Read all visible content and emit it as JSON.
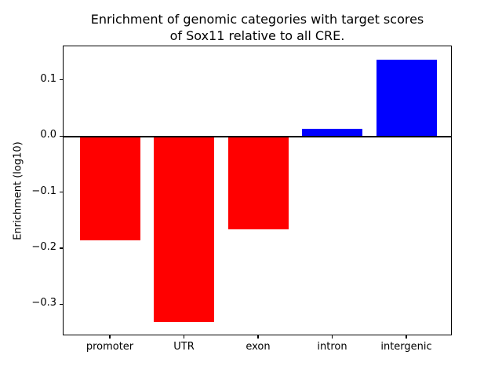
{
  "chart_data": {
    "type": "bar",
    "title": "Enrichment of genomic categories with target scores of Sox11 relative to all CRE.",
    "title_lines": [
      "Enrichment of genomic categories with target scores",
      "of Sox11 relative to all CRE."
    ],
    "xlabel": "",
    "ylabel": "Enrichment (log10)",
    "categories": [
      "promoter",
      "UTR",
      "exon",
      "intron",
      "intergenic"
    ],
    "values": [
      -0.185,
      -0.33,
      -0.165,
      0.015,
      0.138
    ],
    "bar_colors": [
      "#ff0000",
      "#ff0000",
      "#ff0000",
      "#0000ff",
      "#0000ff"
    ],
    "negative_color": "#ff0000",
    "positive_color": "#0000ff",
    "ylim": [
      -0.3555,
      0.1615
    ],
    "yticks": [
      0.1,
      0.0,
      -0.1,
      -0.2,
      -0.3
    ],
    "ytick_labels": [
      "0.1",
      "0.0",
      "−0.1",
      "−0.2",
      "−0.3"
    ],
    "grid": false,
    "legend": null,
    "zero_line": true,
    "axis_color": "#000000",
    "background_color": "#ffffff"
  }
}
